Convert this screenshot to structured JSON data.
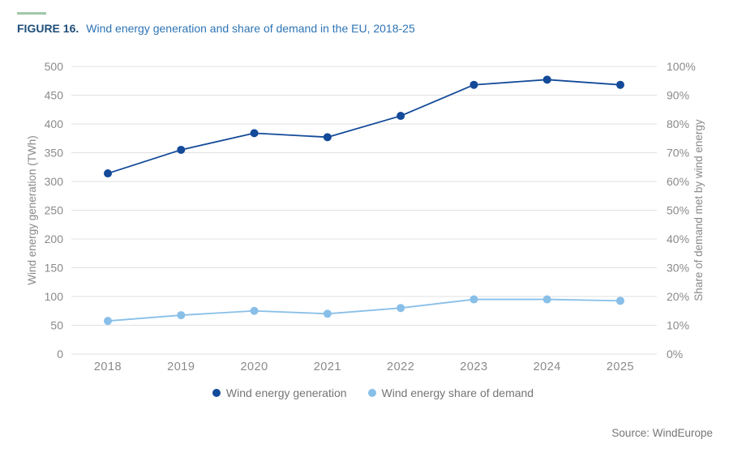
{
  "header": {
    "figure_label": "FIGURE 16.",
    "title": "Wind energy generation and share of demand in the EU, 2018-25"
  },
  "source": {
    "label": "Source: WindEurope"
  },
  "colors": {
    "accent_green": "#A0C8AA",
    "figure_label_blue": "#1F4E79",
    "title_blue": "#2E74B5",
    "axis_text_gray": "#8A8A8A",
    "grid_gray": "#E1E1E1",
    "legend_text_gray": "#757575",
    "generation_blue": "#134A99",
    "share_light_blue": "#88BFE8"
  },
  "chart_data": {
    "type": "line",
    "categories": [
      "2018",
      "2019",
      "2020",
      "2021",
      "2022",
      "2023",
      "2024",
      "2025"
    ],
    "series": [
      {
        "name": "Wind energy generation",
        "axis": "left",
        "color": "#134A99",
        "values": [
          314,
          355,
          384,
          377,
          414,
          468,
          477,
          468
        ]
      },
      {
        "name": "Wind energy share of demand",
        "axis": "right",
        "color": "#88BFE8",
        "values": [
          11.5,
          13.5,
          15,
          14,
          16,
          19,
          19,
          18.5
        ]
      }
    ],
    "left_axis": {
      "label": "Wind energy generation (TWh)",
      "min": 0,
      "max": 500,
      "step": 50,
      "suffix": ""
    },
    "right_axis": {
      "label": "Share of demand met by wind energy",
      "min": 0,
      "max": 100,
      "step": 10,
      "suffix": "%"
    },
    "grid": true,
    "legend_position": "bottom",
    "title": "Wind energy generation and share of demand in the EU, 2018-25"
  }
}
